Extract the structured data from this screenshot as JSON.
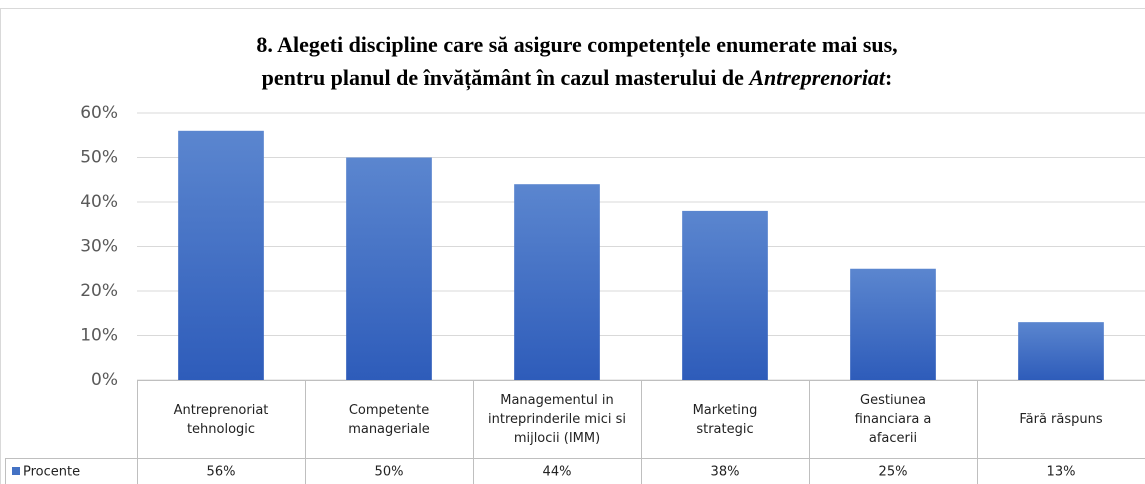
{
  "chart_data": {
    "type": "bar",
    "title": [
      "8. Alegeti discipline care să asigure competențele enumerate mai sus,",
      "pentru planul de învățământ în cazul masterului de ",
      "Antreprenoriat",
      ":"
    ],
    "categories": [
      "Antreprenoriat tehnologic",
      "Competente manageriale",
      "Managementul in intreprinderile mici si mijlocii (IMM)",
      "Marketing strategic",
      "Gestiunea financiara a afacerii",
      "Fără răspuns"
    ],
    "series": [
      {
        "name": "Procente",
        "color": "#4472c4",
        "values": [
          56,
          50,
          44,
          38,
          25,
          13
        ],
        "value_labels": [
          "56%",
          "50%",
          "44%",
          "38%",
          "25%",
          "13%"
        ]
      }
    ],
    "ylim": [
      0,
      60
    ],
    "yticks": [
      {
        "value": 0,
        "label": "0%"
      },
      {
        "value": 10,
        "label": "10%"
      },
      {
        "value": 20,
        "label": "20%"
      },
      {
        "value": 30,
        "label": "30%"
      },
      {
        "value": 40,
        "label": "40%"
      },
      {
        "value": 50,
        "label": "50%"
      },
      {
        "value": 60,
        "label": "60%"
      }
    ],
    "grid": true
  }
}
